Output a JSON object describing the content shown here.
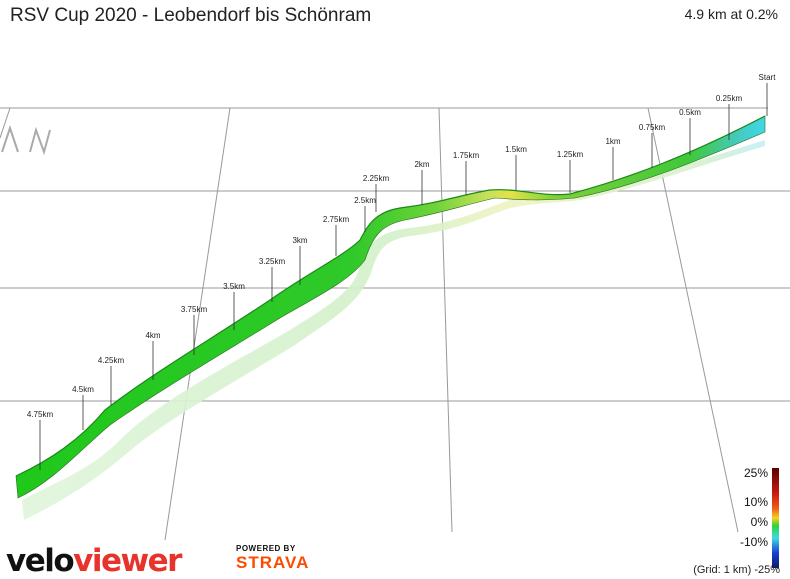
{
  "header": {
    "title": "RSV Cup 2020 - Leobendorf bis Schönram",
    "summary": "4.9 km at 0.2%"
  },
  "markers": [
    {
      "label": "Start"
    },
    {
      "label": "0.25km"
    },
    {
      "label": "0.5km"
    },
    {
      "label": "0.75km"
    },
    {
      "label": "1km"
    },
    {
      "label": "1.25km"
    },
    {
      "label": "1.5km"
    },
    {
      "label": "1.75km"
    },
    {
      "label": "2km"
    },
    {
      "label": "2.25km"
    },
    {
      "label": "2.5km"
    },
    {
      "label": "2.75km"
    },
    {
      "label": "3km"
    },
    {
      "label": "3.25km"
    },
    {
      "label": "3.5km"
    },
    {
      "label": "3.75km"
    },
    {
      "label": "4km"
    },
    {
      "label": "4.25km"
    },
    {
      "label": "4.5km"
    },
    {
      "label": "4.75km"
    }
  ],
  "legend": {
    "labels": [
      "25%",
      "10%",
      "0%",
      "-10%"
    ],
    "bottom_label": "-25%",
    "colors": [
      "#5a0000",
      "#e83a1a",
      "#f5d21f",
      "#2fd23a",
      "#3fd8e8",
      "#1a3fd0",
      "#0b1a70"
    ]
  },
  "grid_note": "(Grid: 1 km) -25%",
  "branding": {
    "velo": "velo",
    "viewer": "viewer",
    "powered_by": "POWERED BY",
    "strava": "STRAVA"
  },
  "colors": {
    "ribbon_green": "#22c81e",
    "ribbon_light": "#c7eec0",
    "grid_line": "#999999"
  }
}
